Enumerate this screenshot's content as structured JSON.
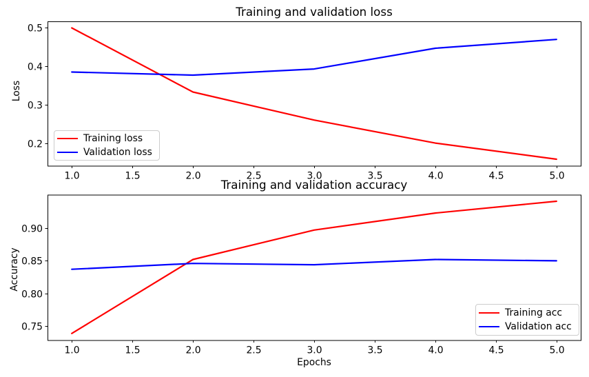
{
  "chart_data": [
    {
      "type": "line",
      "title": "Training and validation loss",
      "xlabel": "",
      "ylabel": "Loss",
      "x": [
        1,
        2,
        3,
        4,
        5
      ],
      "series": [
        {
          "name": "Training loss",
          "color": "#ff0000",
          "values": [
            0.5,
            0.333,
            0.26,
            0.2,
            0.158
          ]
        },
        {
          "name": "Validation loss",
          "color": "#0000ff",
          "values": [
            0.385,
            0.377,
            0.393,
            0.447,
            0.47
          ]
        }
      ],
      "xlim": [
        0.8,
        5.2
      ],
      "ylim": [
        0.141,
        0.517
      ],
      "xticks": [
        1.0,
        1.5,
        2.0,
        2.5,
        3.0,
        3.5,
        4.0,
        4.5,
        5.0
      ],
      "xtick_labels": [
        "1.0",
        "1.5",
        "2.0",
        "2.5",
        "3.0",
        "3.5",
        "4.0",
        "4.5",
        "5.0"
      ],
      "yticks": [
        0.2,
        0.3,
        0.4,
        0.5
      ],
      "ytick_labels": [
        "0.2",
        "0.3",
        "0.4",
        "0.5"
      ],
      "grid": false,
      "legend_position": "lower left"
    },
    {
      "type": "line",
      "title": "Training and validation accuracy",
      "xlabel": "Epochs",
      "ylabel": "Accuracy",
      "x": [
        1,
        2,
        3,
        4,
        5
      ],
      "series": [
        {
          "name": "Training acc",
          "color": "#ff0000",
          "values": [
            0.739,
            0.852,
            0.897,
            0.923,
            0.941
          ]
        },
        {
          "name": "Validation acc",
          "color": "#0000ff",
          "values": [
            0.837,
            0.846,
            0.844,
            0.852,
            0.85
          ]
        }
      ],
      "xlim": [
        0.8,
        5.2
      ],
      "ylim": [
        0.729,
        0.951
      ],
      "xticks": [
        1.0,
        1.5,
        2.0,
        2.5,
        3.0,
        3.5,
        4.0,
        4.5,
        5.0
      ],
      "xtick_labels": [
        "1.0",
        "1.5",
        "2.0",
        "2.5",
        "3.0",
        "3.5",
        "4.0",
        "4.5",
        "5.0"
      ],
      "yticks": [
        0.75,
        0.8,
        0.85,
        0.9
      ],
      "ytick_labels": [
        "0.75",
        "0.80",
        "0.85",
        "0.90"
      ],
      "grid": false,
      "legend_position": "lower right"
    }
  ],
  "colors": {
    "axis": "#000000",
    "text": "#000000",
    "legend_border": "#cccccc",
    "background": "#ffffff"
  }
}
